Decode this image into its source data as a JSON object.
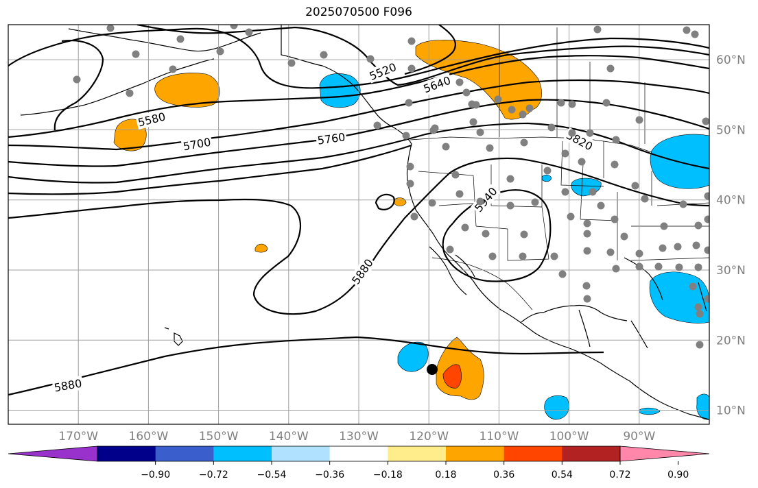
{
  "title": "2025070500 F096",
  "map": {
    "extent": {
      "lon": [
        -180,
        -80
      ],
      "lat": [
        8,
        65
      ]
    },
    "lat_labels": [
      "10°N",
      "20°N",
      "30°N",
      "40°N",
      "50°N",
      "60°N"
    ],
    "lat_values": [
      10,
      20,
      30,
      40,
      50,
      60
    ],
    "lon_labels": [
      "170°W",
      "160°W",
      "150°W",
      "140°W",
      "130°W",
      "120°W",
      "110°W",
      "100°W",
      "90°W"
    ],
    "lon_values": [
      -170,
      -160,
      -150,
      -140,
      -130,
      -120,
      -110,
      -100,
      -90
    ],
    "gridline_color": "#a0a0a0",
    "contour_labels": [
      "5520",
      "5580",
      "5640",
      "5700",
      "5760",
      "5820",
      "5880",
      "5880",
      "5940"
    ],
    "station_marker_color": "#808080"
  },
  "colorbar": {
    "tick_labels": [
      "−0.90",
      "−0.72",
      "−0.54",
      "−0.36",
      "−0.18",
      "0.18",
      "0.36",
      "0.54",
      "0.72",
      "0.90"
    ],
    "tick_values": [
      -0.9,
      -0.72,
      -0.54,
      -0.36,
      -0.18,
      0.18,
      0.36,
      0.54,
      0.72,
      0.9
    ],
    "colors": [
      "#9932cc",
      "#00008b",
      "#3a5fcd",
      "#00bfff",
      "#b0e2ff",
      "#ffffff",
      "#ffec8b",
      "#ffa500",
      "#ff4500",
      "#b22222",
      "#ff88aa"
    ]
  }
}
